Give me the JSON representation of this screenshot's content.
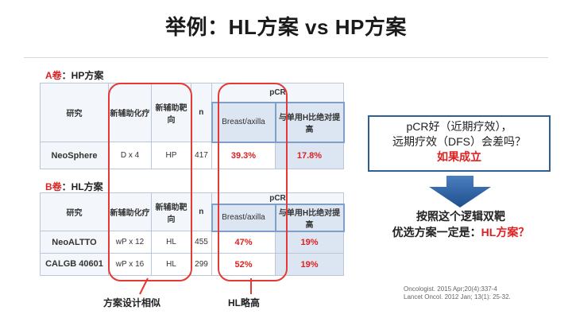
{
  "title": "举例：HL方案 vs HP方案",
  "section_a": {
    "prefix": "A卷",
    "suffix": "：HP方案"
  },
  "section_b": {
    "prefix": "B卷",
    "suffix": "：HL方案"
  },
  "table_a": {
    "col_study": "研究",
    "col_chemo": "新辅助化疗",
    "col_target": "新辅助靶向",
    "col_n": "n",
    "col_pcr": "pCR",
    "col_breast": "Breast/axilla",
    "col_benefit": "与单用H比绝对提高",
    "rows": [
      {
        "study": "NeoSphere",
        "chemo": "D x 4",
        "target": "HP",
        "n": "417",
        "breast": "39.3%",
        "benefit": "17.8%"
      }
    ]
  },
  "table_b": {
    "col_study": "研究",
    "col_chemo": "新辅助化疗",
    "col_target": "新辅助靶向",
    "col_n": "n",
    "col_pcr": "pCR",
    "col_breast": "Breast/axilla",
    "col_benefit": "与单用H比绝对提高",
    "rows": [
      {
        "study": "NeoALTTO",
        "chemo": "wP x 12",
        "target": "HL",
        "n": "455",
        "breast": "47%",
        "benefit": "19%"
      },
      {
        "study": "CALGB 40601",
        "chemo": "wP x 16",
        "target": "HL",
        "n": "299",
        "breast": "52%",
        "benefit": "19%"
      }
    ]
  },
  "callout": {
    "line1": "pCR好（近期疗效），",
    "line2": "远期疗效（DFS）会差吗？",
    "line3": "如果成立"
  },
  "conclusion": {
    "line1": "按照这个逻辑双靶",
    "line2_pre": "优选方案一定是：",
    "line2_red": "HL方案？"
  },
  "bottom_labels": {
    "left": "方案设计相似",
    "right": "HL略高"
  },
  "references": [
    "Oncologist. 2015 Apr;20(4):337-4",
    "Lancet Oncol. 2012 Jan; 13(1): 25-32."
  ],
  "colors": {
    "accent_red": "#e53935",
    "table_shade": "#dce6f2",
    "border_blue": "#2f5f96"
  }
}
